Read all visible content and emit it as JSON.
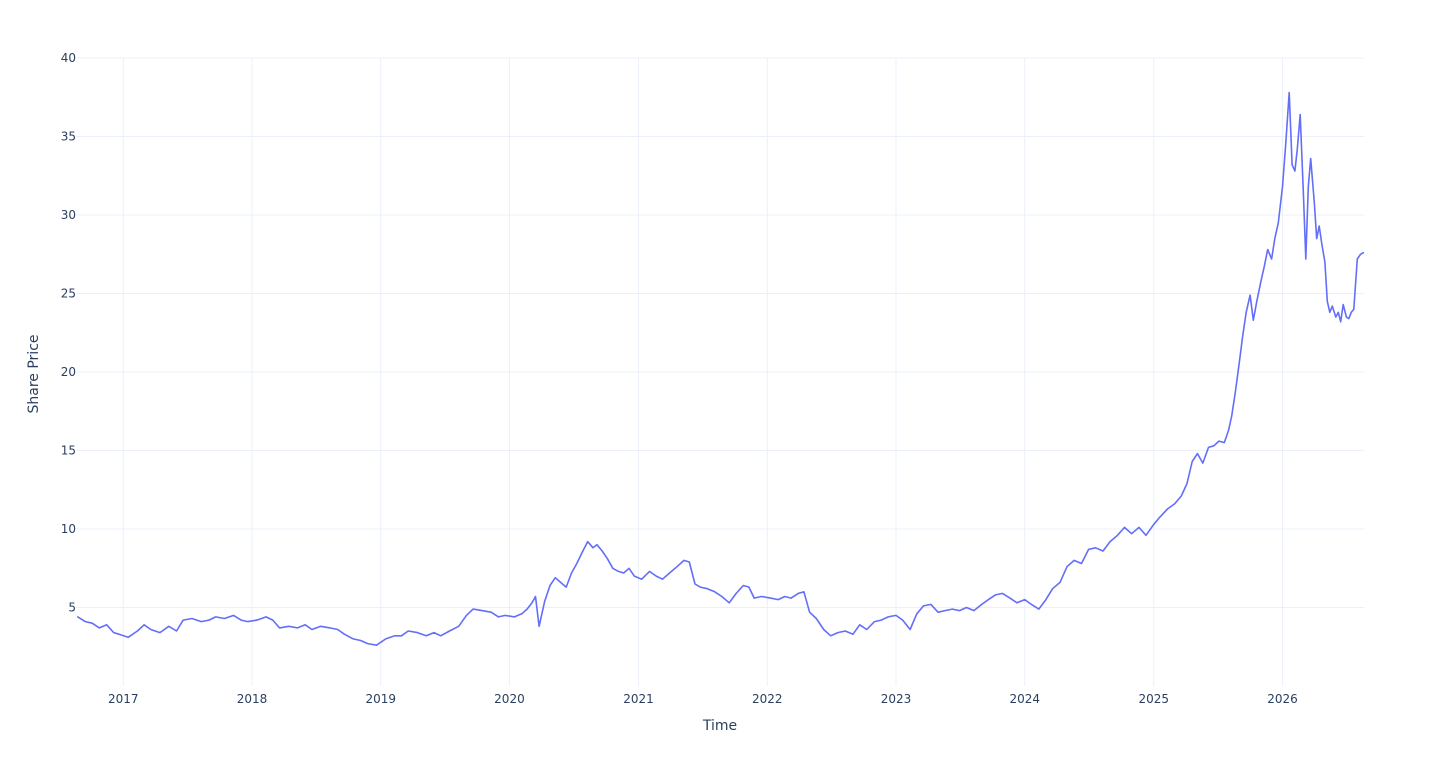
{
  "colors": {
    "series": "#636efa",
    "grid": "#ebf0f8",
    "text": "#2a3f5f",
    "background": "#ffffff"
  },
  "chart_data": {
    "type": "line",
    "xlabel": "Time",
    "ylabel": "Share Price",
    "x_axis_type": "date",
    "xlim": [
      "2016-08-20",
      "2026-08-20"
    ],
    "ylim": [
      0,
      40
    ],
    "grid": true,
    "legend": "none",
    "x_ticks": [
      {
        "label": "2017",
        "value": "2017-01-01"
      },
      {
        "label": "2018",
        "value": "2018-01-01"
      },
      {
        "label": "2019",
        "value": "2019-01-01"
      },
      {
        "label": "2020",
        "value": "2020-01-01"
      },
      {
        "label": "2021",
        "value": "2021-01-01"
      },
      {
        "label": "2022",
        "value": "2022-01-01"
      },
      {
        "label": "2023",
        "value": "2023-01-01"
      },
      {
        "label": "2024",
        "value": "2024-01-01"
      },
      {
        "label": "2025",
        "value": "2025-01-01"
      },
      {
        "label": "2026",
        "value": "2026-01-01"
      }
    ],
    "y_ticks": [
      {
        "label": "5",
        "value": 5
      },
      {
        "label": "10",
        "value": 10
      },
      {
        "label": "15",
        "value": 15
      },
      {
        "label": "20",
        "value": 20
      },
      {
        "label": "25",
        "value": 25
      },
      {
        "label": "30",
        "value": 30
      },
      {
        "label": "35",
        "value": 35
      },
      {
        "label": "40",
        "value": 40
      }
    ],
    "series": [
      {
        "x": [
          "2016-08-25",
          "2016-09-15",
          "2016-10-05",
          "2016-10-25",
          "2016-11-15",
          "2016-12-05",
          "2016-12-20",
          "2017-01-15",
          "2017-02-10",
          "2017-03-01",
          "2017-03-20",
          "2017-04-15",
          "2017-05-10",
          "2017-06-01",
          "2017-06-20",
          "2017-07-15",
          "2017-08-10",
          "2017-09-01",
          "2017-09-20",
          "2017-10-15",
          "2017-11-10",
          "2017-12-01",
          "2017-12-20",
          "2018-01-15",
          "2018-02-10",
          "2018-03-01",
          "2018-03-20",
          "2018-04-15",
          "2018-05-10",
          "2018-06-01",
          "2018-06-20",
          "2018-07-15",
          "2018-08-10",
          "2018-09-01",
          "2018-09-20",
          "2018-10-15",
          "2018-11-05",
          "2018-11-25",
          "2018-12-20",
          "2019-01-15",
          "2019-02-10",
          "2019-03-01",
          "2019-03-20",
          "2019-04-15",
          "2019-05-10",
          "2019-06-01",
          "2019-06-20",
          "2019-07-15",
          "2019-08-10",
          "2019-09-01",
          "2019-09-20",
          "2019-10-15",
          "2019-11-10",
          "2019-12-01",
          "2019-12-20",
          "2020-01-15",
          "2020-02-05",
          "2020-02-20",
          "2020-03-05",
          "2020-03-15",
          "2020-03-25",
          "2020-04-10",
          "2020-04-25",
          "2020-05-10",
          "2020-05-25",
          "2020-06-10",
          "2020-06-25",
          "2020-07-10",
          "2020-07-25",
          "2020-08-10",
          "2020-08-25",
          "2020-09-05",
          "2020-09-20",
          "2020-10-05",
          "2020-10-20",
          "2020-11-05",
          "2020-11-20",
          "2020-12-05",
          "2020-12-20",
          "2021-01-10",
          "2021-02-01",
          "2021-02-20",
          "2021-03-10",
          "2021-03-30",
          "2021-04-20",
          "2021-05-10",
          "2021-05-25",
          "2021-06-10",
          "2021-06-25",
          "2021-07-15",
          "2021-08-05",
          "2021-08-25",
          "2021-09-15",
          "2021-10-05",
          "2021-10-25",
          "2021-11-10",
          "2021-11-25",
          "2021-12-15",
          "2022-01-10",
          "2022-02-01",
          "2022-02-20",
          "2022-03-10",
          "2022-03-30",
          "2022-04-15",
          "2022-05-01",
          "2022-05-20",
          "2022-06-10",
          "2022-06-30",
          "2022-07-20",
          "2022-08-10",
          "2022-09-01",
          "2022-09-20",
          "2022-10-10",
          "2022-11-01",
          "2022-11-20",
          "2022-12-10",
          "2023-01-01",
          "2023-01-20",
          "2023-02-10",
          "2023-03-01",
          "2023-03-20",
          "2023-04-10",
          "2023-04-30",
          "2023-05-20",
          "2023-06-10",
          "2023-06-30",
          "2023-07-20",
          "2023-08-10",
          "2023-09-01",
          "2023-09-20",
          "2023-10-10",
          "2023-10-30",
          "2023-11-20",
          "2023-12-10",
          "2024-01-01",
          "2024-01-20",
          "2024-02-10",
          "2024-03-01",
          "2024-03-20",
          "2024-04-10",
          "2024-04-30",
          "2024-05-20",
          "2024-06-10",
          "2024-06-30",
          "2024-07-20",
          "2024-08-10",
          "2024-08-30",
          "2024-09-20",
          "2024-10-10",
          "2024-10-30",
          "2024-11-20",
          "2024-12-10",
          "2025-01-01",
          "2025-01-20",
          "2025-02-10",
          "2025-03-01",
          "2025-03-20",
          "2025-04-05",
          "2025-04-20",
          "2025-05-05",
          "2025-05-20",
          "2025-06-05",
          "2025-06-20",
          "2025-07-05",
          "2025-07-20",
          "2025-08-01",
          "2025-08-10",
          "2025-08-20",
          "2025-09-01",
          "2025-09-10",
          "2025-09-20",
          "2025-10-01",
          "2025-10-10",
          "2025-10-20",
          "2025-11-01",
          "2025-11-10",
          "2025-11-20",
          "2025-12-01",
          "2025-12-10",
          "2025-12-20",
          "2026-01-01",
          "2026-01-10",
          "2026-01-20",
          "2026-01-28",
          "2026-02-05",
          "2026-02-12",
          "2026-02-20",
          "2026-03-01",
          "2026-03-08",
          "2026-03-15",
          "2026-03-22",
          "2026-04-01",
          "2026-04-08",
          "2026-04-15",
          "2026-04-22",
          "2026-05-01",
          "2026-05-08",
          "2026-05-15",
          "2026-05-22",
          "2026-06-01",
          "2026-06-08",
          "2026-06-15",
          "2026-06-22",
          "2026-07-01",
          "2026-07-08",
          "2026-07-15",
          "2026-07-22",
          "2026-08-01",
          "2026-08-10",
          "2026-08-18"
        ],
        "y": [
          4.4,
          4.1,
          4.0,
          3.7,
          3.9,
          3.4,
          3.3,
          3.1,
          3.5,
          3.9,
          3.6,
          3.4,
          3.8,
          3.5,
          4.2,
          4.3,
          4.1,
          4.2,
          4.4,
          4.3,
          4.5,
          4.2,
          4.1,
          4.2,
          4.4,
          4.2,
          3.7,
          3.8,
          3.7,
          3.9,
          3.6,
          3.8,
          3.7,
          3.6,
          3.3,
          3.0,
          2.9,
          2.7,
          2.6,
          3.0,
          3.2,
          3.2,
          3.5,
          3.4,
          3.2,
          3.4,
          3.2,
          3.5,
          3.8,
          4.5,
          4.9,
          4.8,
          4.7,
          4.4,
          4.5,
          4.4,
          4.6,
          4.9,
          5.3,
          5.7,
          3.8,
          5.4,
          6.4,
          6.9,
          6.6,
          6.3,
          7.2,
          7.8,
          8.5,
          9.2,
          8.8,
          9.0,
          8.6,
          8.1,
          7.5,
          7.3,
          7.2,
          7.5,
          7.0,
          6.8,
          7.3,
          7.0,
          6.8,
          7.2,
          7.6,
          8.0,
          7.9,
          6.5,
          6.3,
          6.2,
          6.0,
          5.7,
          5.3,
          5.9,
          6.4,
          6.3,
          5.6,
          5.7,
          5.6,
          5.5,
          5.7,
          5.6,
          5.9,
          6.0,
          4.7,
          4.3,
          3.6,
          3.2,
          3.4,
          3.5,
          3.3,
          3.9,
          3.6,
          4.1,
          4.2,
          4.4,
          4.5,
          4.2,
          3.6,
          4.6,
          5.1,
          5.2,
          4.7,
          4.8,
          4.9,
          4.8,
          5.0,
          4.8,
          5.2,
          5.5,
          5.8,
          5.9,
          5.6,
          5.3,
          5.5,
          5.2,
          4.9,
          5.5,
          6.2,
          6.6,
          7.6,
          8.0,
          7.8,
          8.7,
          8.8,
          8.6,
          9.2,
          9.6,
          10.1,
          9.7,
          10.1,
          9.6,
          10.3,
          10.8,
          11.3,
          11.6,
          12.1,
          12.9,
          14.3,
          14.8,
          14.2,
          15.2,
          15.3,
          15.6,
          15.5,
          16.3,
          17.2,
          18.7,
          20.7,
          22.3,
          23.8,
          24.9,
          23.3,
          24.5,
          25.8,
          26.7,
          27.8,
          27.2,
          28.5,
          29.5,
          31.8,
          34.5,
          37.8,
          33.2,
          32.8,
          34.2,
          36.4,
          31.5,
          27.2,
          31.8,
          33.6,
          30.8,
          28.5,
          29.3,
          28.2,
          27.0,
          24.5,
          23.8,
          24.2,
          23.5,
          23.8,
          23.2,
          24.3,
          23.5,
          23.4,
          23.8,
          24.0,
          27.2,
          27.5,
          27.6
        ]
      }
    ]
  }
}
